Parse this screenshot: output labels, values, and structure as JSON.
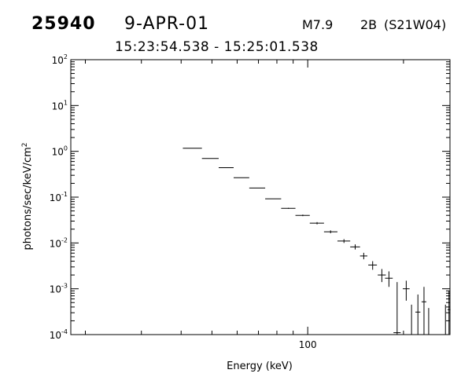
{
  "header": {
    "event_id": "25940",
    "date": "9-APR-01",
    "flare_class": "M7.9",
    "optical_class": "2B",
    "location": "(S21W04)",
    "time_range": "15:23:54.538 - 15:25:01.538"
  },
  "chart_data": {
    "type": "scatter",
    "xlabel": "Energy (keV)",
    "ylabel": "photons/sec/keV/cm",
    "ylabel_superscript": "2",
    "x_scale": "log",
    "y_scale": "log",
    "xlim": [
      18,
      280
    ],
    "ylim": [
      0.0001,
      100
    ],
    "x_tick_labels": [
      {
        "value": 100,
        "label": "100"
      }
    ],
    "y_tick_labels": [
      {
        "value": 100,
        "base": "10",
        "exp": "2"
      },
      {
        "value": 10,
        "base": "10",
        "exp": "1"
      },
      {
        "value": 1,
        "base": "10",
        "exp": "0"
      },
      {
        "value": 0.1,
        "base": "10",
        "exp": "-1"
      },
      {
        "value": 0.01,
        "base": "10",
        "exp": "-2"
      },
      {
        "value": 0.001,
        "base": "10",
        "exp": "-3"
      },
      {
        "value": 0.0001,
        "base": "10",
        "exp": "-4"
      }
    ],
    "grid": false,
    "points": [
      {
        "x": 43.5,
        "x_lo": 40.5,
        "x_hi": 46.5,
        "y": 1.17,
        "y_lo": 1.17,
        "y_hi": 1.17
      },
      {
        "x": 49.5,
        "x_lo": 46.5,
        "x_hi": 52.5,
        "y": 0.7,
        "y_lo": 0.7,
        "y_hi": 0.7
      },
      {
        "x": 55.5,
        "x_lo": 52.5,
        "x_hi": 58.5,
        "y": 0.44,
        "y_lo": 0.44,
        "y_hi": 0.44
      },
      {
        "x": 62.0,
        "x_lo": 58.5,
        "x_hi": 65.5,
        "y": 0.265,
        "y_lo": 0.265,
        "y_hi": 0.265
      },
      {
        "x": 69.5,
        "x_lo": 65.5,
        "x_hi": 73.5,
        "y": 0.158,
        "y_lo": 0.158,
        "y_hi": 0.158
      },
      {
        "x": 78.0,
        "x_lo": 73.5,
        "x_hi": 82.5,
        "y": 0.092,
        "y_lo": 0.092,
        "y_hi": 0.092
      },
      {
        "x": 87.0,
        "x_lo": 82.5,
        "x_hi": 91.5,
        "y": 0.057,
        "y_lo": 0.0555,
        "y_hi": 0.0585
      },
      {
        "x": 96.5,
        "x_lo": 91.5,
        "x_hi": 101.5,
        "y": 0.04,
        "y_lo": 0.0385,
        "y_hi": 0.0415
      },
      {
        "x": 107,
        "x_lo": 101.5,
        "x_hi": 112.5,
        "y": 0.027,
        "y_lo": 0.0255,
        "y_hi": 0.0285
      },
      {
        "x": 118,
        "x_lo": 112.5,
        "x_hi": 124,
        "y": 0.0175,
        "y_lo": 0.0163,
        "y_hi": 0.0188
      },
      {
        "x": 130,
        "x_lo": 124,
        "x_hi": 136,
        "y": 0.011,
        "y_lo": 0.01,
        "y_hi": 0.0121
      },
      {
        "x": 141,
        "x_lo": 136,
        "x_hi": 146,
        "y": 0.0082,
        "y_lo": 0.0072,
        "y_hi": 0.0093
      },
      {
        "x": 150,
        "x_lo": 146,
        "x_hi": 154,
        "y": 0.0052,
        "y_lo": 0.0044,
        "y_hi": 0.0061
      },
      {
        "x": 160,
        "x_lo": 155,
        "x_hi": 165,
        "y": 0.0033,
        "y_lo": 0.0026,
        "y_hi": 0.004
      },
      {
        "x": 171,
        "x_lo": 166,
        "x_hi": 176,
        "y": 0.002,
        "y_lo": 0.0014,
        "y_hi": 0.0027
      },
      {
        "x": 180,
        "x_lo": 175,
        "x_hi": 185,
        "y": 0.0017,
        "y_lo": 0.0011,
        "y_hi": 0.0024
      },
      {
        "x": 191,
        "x_lo": 186,
        "x_hi": 196,
        "y": 0.00011,
        "y_lo": 0.0001,
        "y_hi": 0.0014
      },
      {
        "x": 204,
        "x_lo": 199,
        "x_hi": 209,
        "y": 0.001,
        "y_lo": 0.00055,
        "y_hi": 0.0015
      },
      {
        "x": 222,
        "x_lo": 218,
        "x_hi": 226,
        "y": 0.00031,
        "y_lo": 0.0001,
        "y_hi": 0.00075
      },
      {
        "x": 232,
        "x_lo": 228,
        "x_hi": 236,
        "y": 0.00052,
        "y_lo": 0.0001,
        "y_hi": 0.0011
      },
      {
        "x": 278,
        "x_lo": 275,
        "x_hi": 281,
        "y": 0.00035,
        "y_lo": 0.0001,
        "y_hi": 0.0009
      }
    ],
    "lower_limit_bars": [
      {
        "x": 212,
        "y_lo": 0.0001,
        "y_hi": 0.00045
      },
      {
        "x": 240,
        "y_lo": 0.0001,
        "y_hi": 0.00038
      },
      {
        "x": 271,
        "y_lo": 0.0001,
        "y_hi": 0.00045
      }
    ]
  }
}
